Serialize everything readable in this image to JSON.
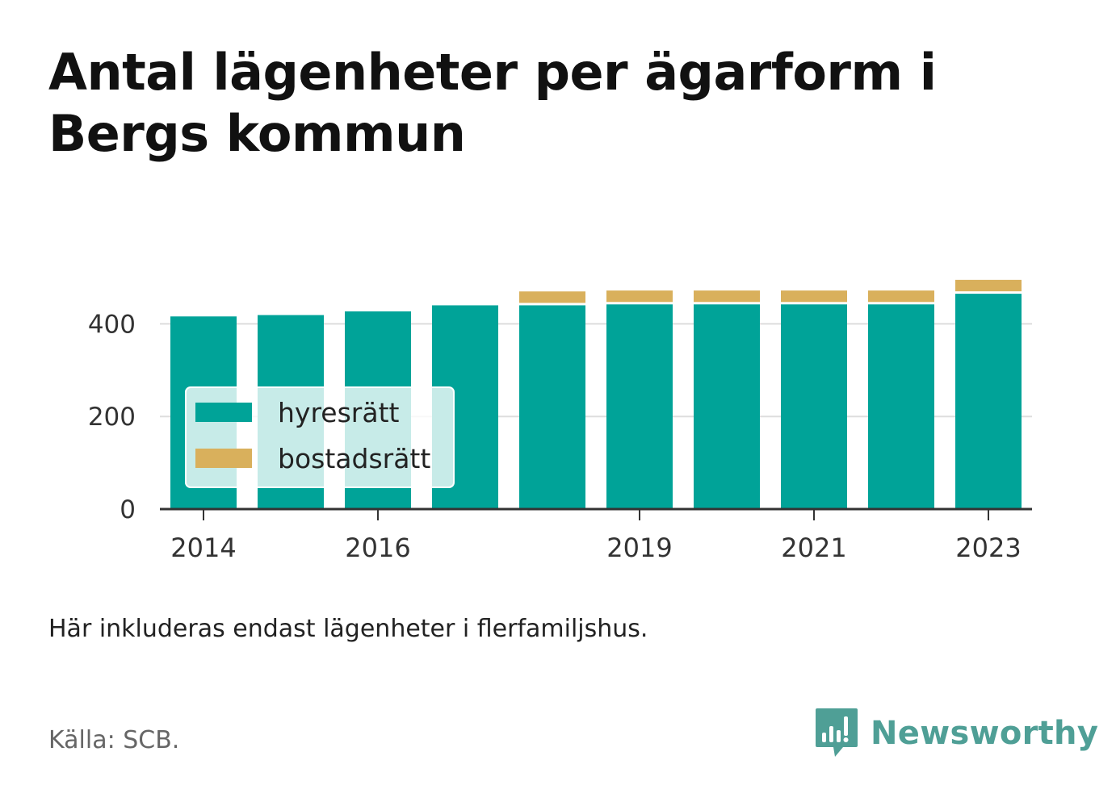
{
  "title": "Antal lägenheter per ägarform i Bergs kommun",
  "note": "Här inkluderas endast lägenheter i flerfamiljshus.",
  "source": "Källa: SCB.",
  "brand": {
    "name": "Newsworthy",
    "icon": "newsworthy-logo-icon",
    "color": "#4f9f96"
  },
  "colors": {
    "hyresratt": "#00a398",
    "bostadsratt": "#d9b05c",
    "grid": "#dddddd",
    "axis": "#333333"
  },
  "chart_data": {
    "type": "bar",
    "stacked": true,
    "categories": [
      "2014",
      "2015",
      "2016",
      "2017",
      "2018",
      "2019",
      "2020",
      "2021",
      "2022",
      "2023"
    ],
    "x_tick_labels": [
      "2014",
      "",
      "2016",
      "",
      "",
      "2019",
      "",
      "2021",
      "",
      "2023"
    ],
    "series": [
      {
        "name": "hyresrätt",
        "color": "#00a398",
        "values": [
          416,
          419,
          427,
          440,
          440,
          442,
          442,
          442,
          442,
          465
        ]
      },
      {
        "name": "bostadsrätt",
        "color": "#d9b05c",
        "values": [
          0,
          0,
          0,
          0,
          30,
          30,
          30,
          30,
          30,
          30
        ]
      }
    ],
    "ylim": [
      0,
      500
    ],
    "yticks": [
      0,
      200,
      400
    ],
    "grid": true,
    "legend_position": "lower-left",
    "title": "Antal lägenheter per ägarform i Bergs kommun",
    "xlabel": "",
    "ylabel": ""
  }
}
